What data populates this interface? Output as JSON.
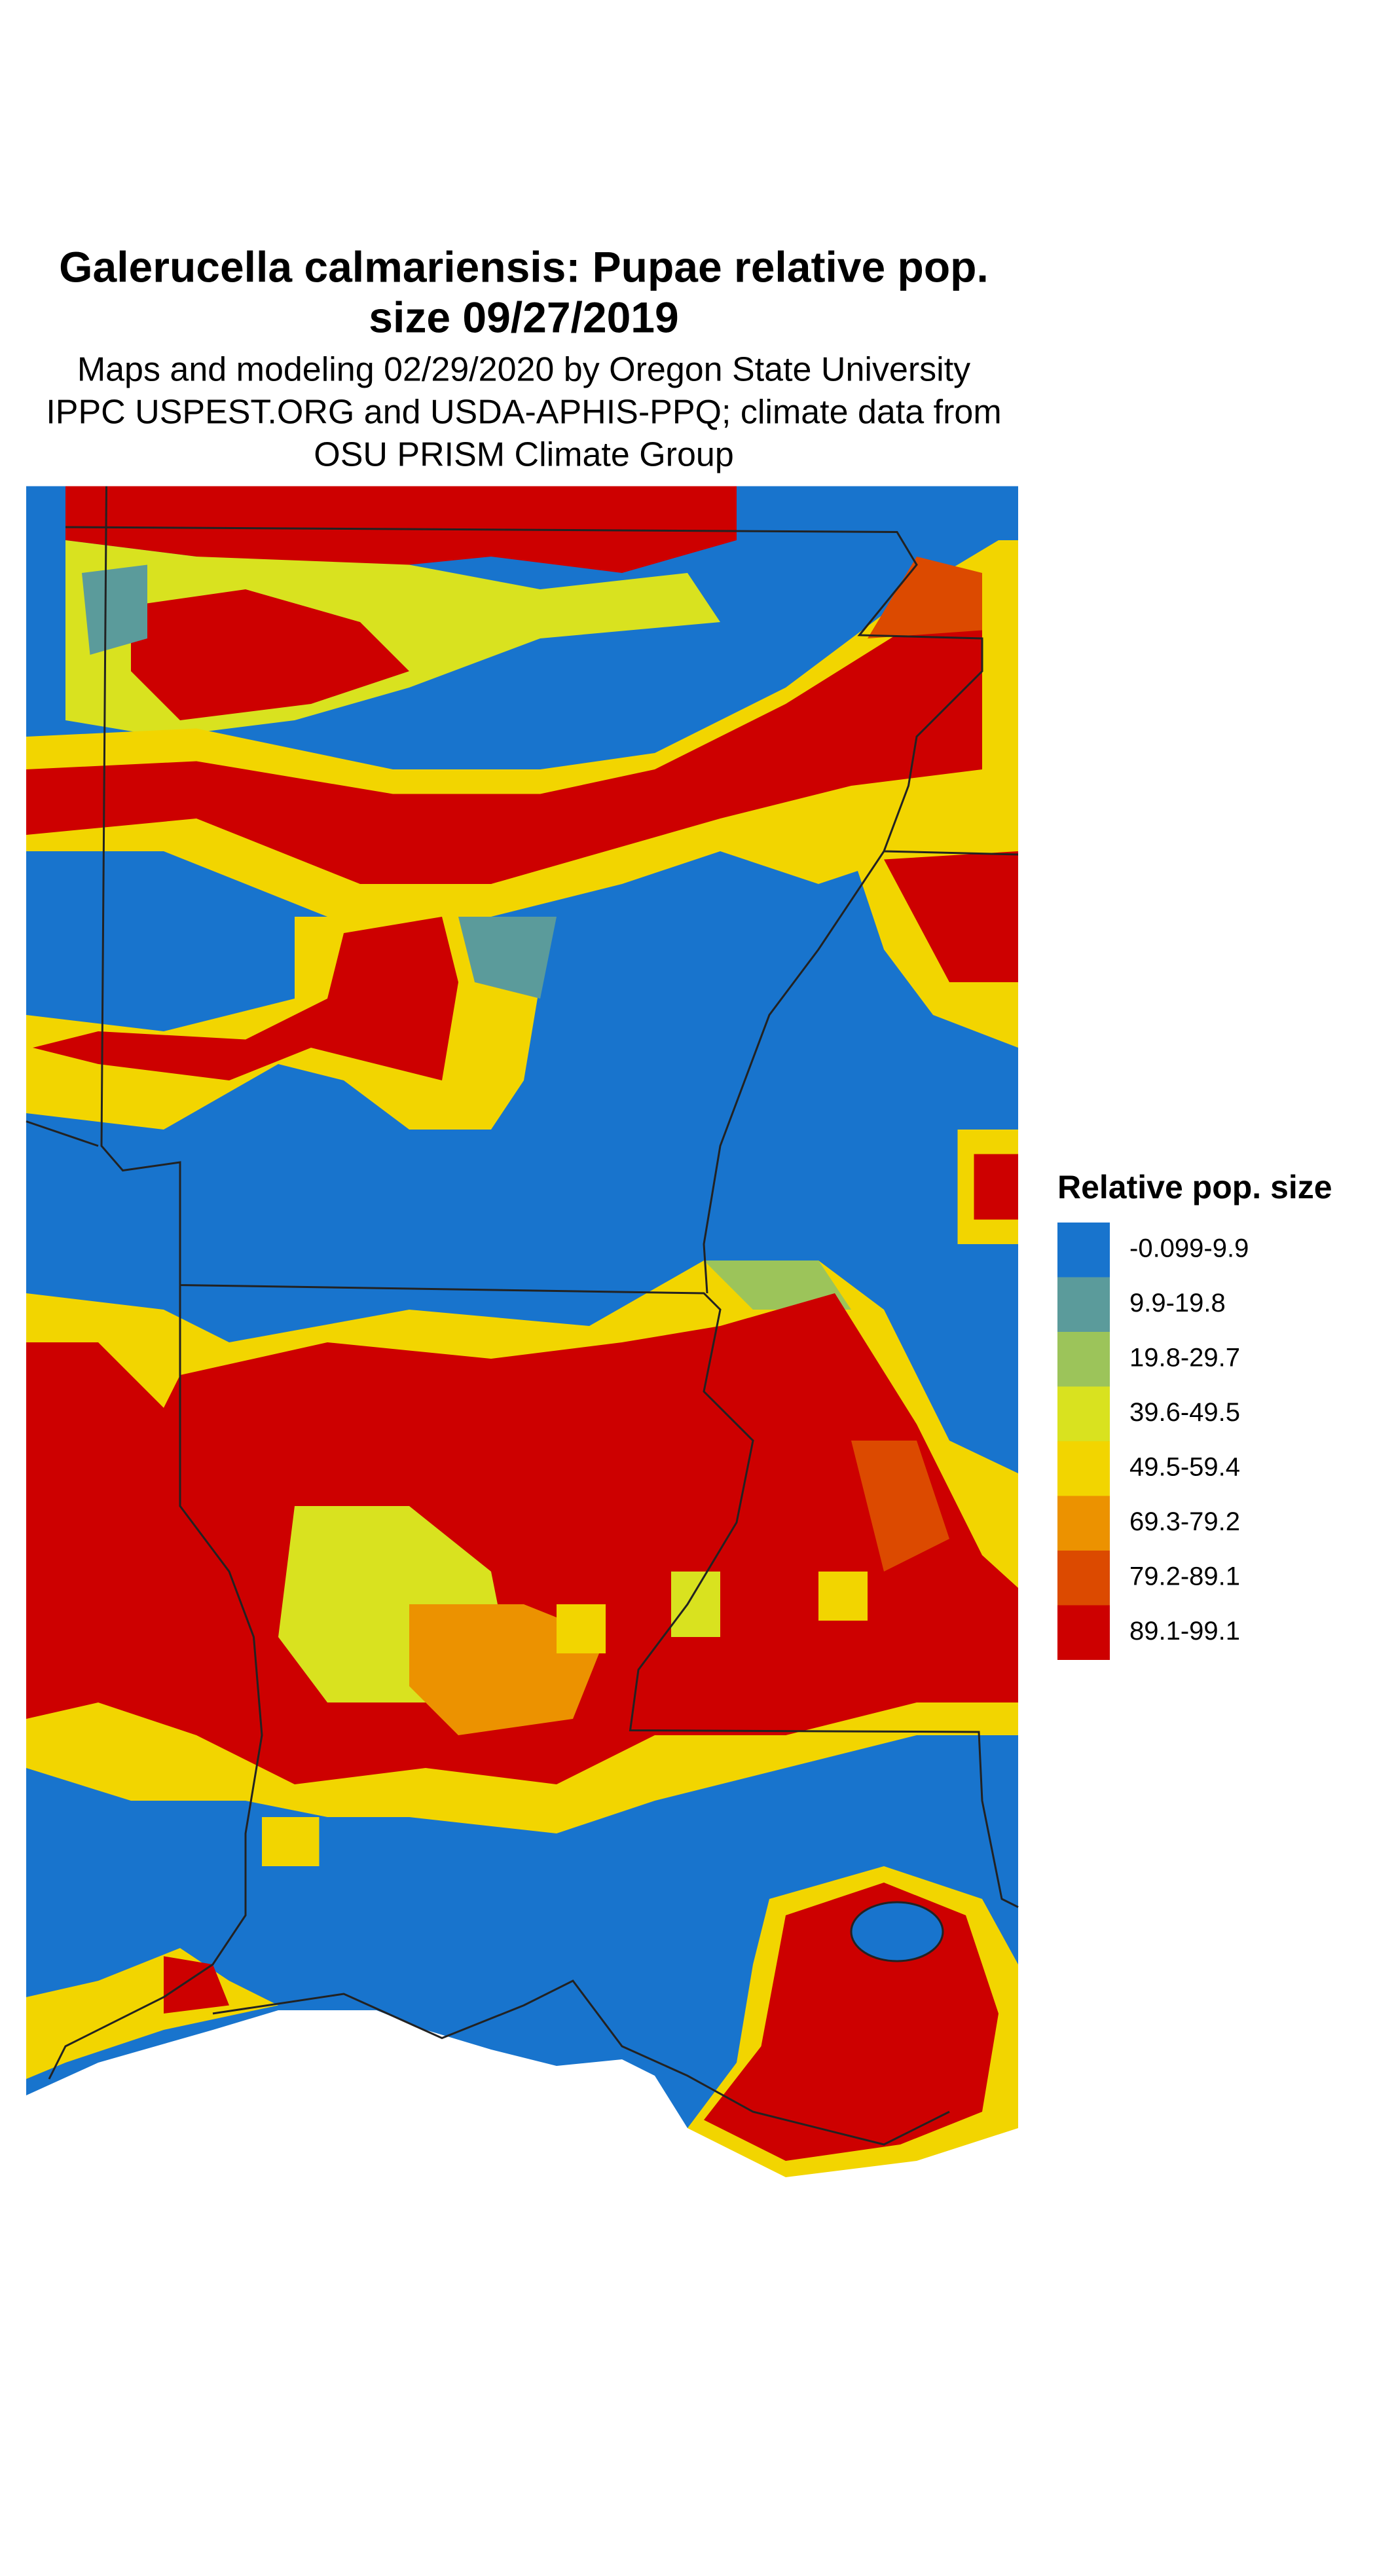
{
  "title": [
    "Galerucella calmariensis: Pupae relative pop.",
    "size 09/27/2019"
  ],
  "subtitle": [
    "Maps and modeling 02/29/2020 by Oregon State University",
    "IPPC USPEST.ORG and USDA-APHIS-PPQ; climate data from",
    "OSU PRISM Climate Group"
  ],
  "legend": {
    "title": "Relative pop. size",
    "items": [
      {
        "label": "-0.099-9.9",
        "color": "#1874cd"
      },
      {
        "label": "9.9-19.8",
        "color": "#5b9b9b"
      },
      {
        "label": "19.8-29.7",
        "color": "#9cc45a"
      },
      {
        "label": "39.6-49.5",
        "color": "#d9e21f"
      },
      {
        "label": "49.5-59.4",
        "color": "#f2d500"
      },
      {
        "label": "69.3-79.2",
        "color": "#ec9200"
      },
      {
        "label": "79.2-89.1",
        "color": "#dc4a00"
      },
      {
        "label": "89.1-99.1",
        "color": "#cd0000"
      }
    ]
  }
}
